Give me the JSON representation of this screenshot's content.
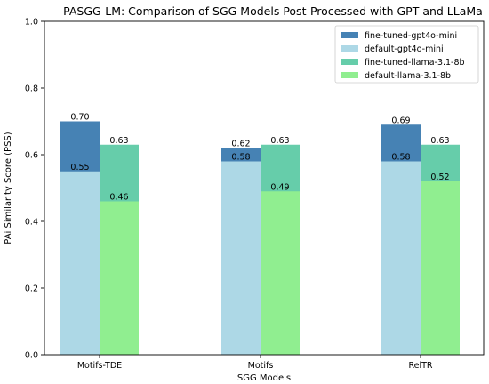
{
  "chart_data": {
    "type": "bar",
    "title": "PASGG-LM: Comparison of SGG Models Post-Processed with GPT and LLaMa",
    "xlabel": "SGG Models",
    "ylabel": "PAi Similarity Score (PSS)",
    "ylim": [
      0,
      1.0
    ],
    "yticks": [
      "0.0",
      "0.2",
      "0.4",
      "0.6",
      "0.8",
      "1.0"
    ],
    "categories": [
      "Motifs-TDE",
      "Motifs",
      "RelTR"
    ],
    "grid": false,
    "legend_position": "top-right",
    "series": [
      {
        "name": "fine-tuned-gpt4o-mini",
        "values": [
          0.7,
          0.62,
          0.69
        ],
        "labels": [
          "0.70",
          "0.62",
          "0.69"
        ],
        "color": "#4682b4",
        "group": "gpt"
      },
      {
        "name": "default-gpt4o-mini",
        "values": [
          0.55,
          0.58,
          0.58
        ],
        "labels": [
          "0.55",
          "0.58",
          "0.58"
        ],
        "color": "#add8e6",
        "group": "gpt"
      },
      {
        "name": "fine-tuned-llama-3.1-8b",
        "values": [
          0.63,
          0.63,
          0.63
        ],
        "labels": [
          "0.63",
          "0.63",
          "0.63"
        ],
        "color": "#66cdaa",
        "group": "llama"
      },
      {
        "name": "default-llama-3.1-8b",
        "values": [
          0.46,
          0.49,
          0.52
        ],
        "labels": [
          "0.46",
          "0.49",
          "0.52"
        ],
        "color": "#90ee90",
        "group": "llama"
      }
    ]
  }
}
